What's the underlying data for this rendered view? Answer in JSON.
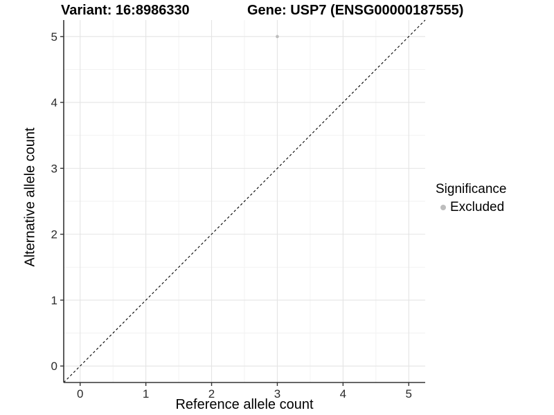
{
  "titles": {
    "variant": "Variant: 16:8986330",
    "gene": "Gene: USP7 (ENSG00000187555)"
  },
  "axes": {
    "x_label": "Reference allele count",
    "y_label": "Alternative allele count"
  },
  "legend": {
    "title": "Significance",
    "items": [
      {
        "label": "Excluded",
        "color": "#bdbdbd"
      }
    ]
  },
  "chart_data": {
    "type": "scatter",
    "title": "Variant: 16:8986330   Gene: USP7 (ENSG00000187555)",
    "xlabel": "Reference allele count",
    "ylabel": "Alternative allele count",
    "xlim": [
      -0.25,
      5.25
    ],
    "ylim": [
      -0.25,
      5.25
    ],
    "x_ticks": [
      0,
      1,
      2,
      3,
      4,
      5
    ],
    "y_ticks": [
      0,
      1,
      2,
      3,
      4,
      5
    ],
    "minor_grid_offset": 0.5,
    "grid": true,
    "legend_position": "right",
    "series": [
      {
        "name": "Excluded",
        "color": "#bdbdbd",
        "points": [
          {
            "x": 3,
            "y": 5
          }
        ]
      }
    ],
    "reference_line": {
      "type": "identity",
      "style": "dashed",
      "color": "#000000"
    },
    "style": {
      "background": "#ffffff",
      "grid_major": "#e4e4e4",
      "grid_minor": "#f1f1f1",
      "axis_color": "#333333",
      "tick_label_color": "#2b2b2b",
      "point_radius": 2.3
    }
  }
}
